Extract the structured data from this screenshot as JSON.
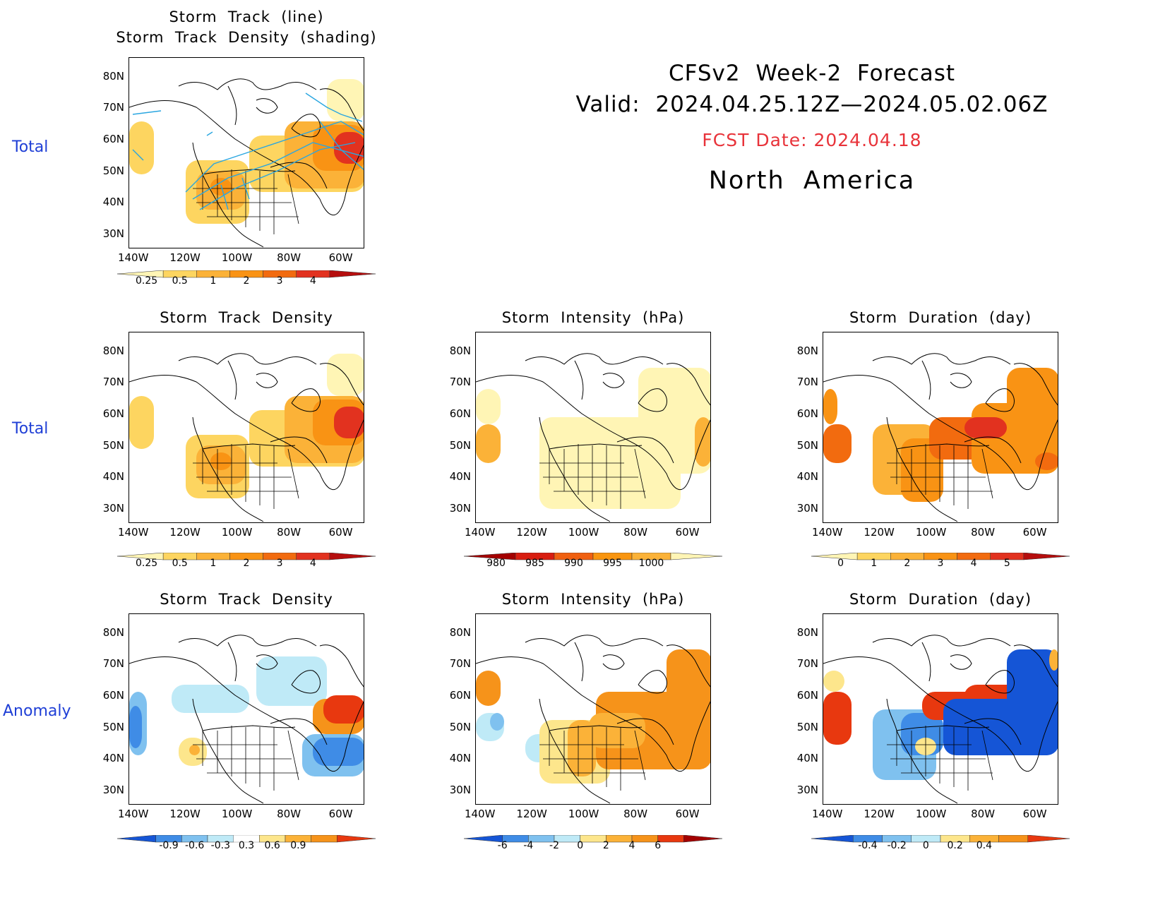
{
  "header": {
    "title_line1": "CFSv2  Week-2  Forecast",
    "title_line2": "Valid:  2024.04.25.12Z—2024.05.02.06Z",
    "fcst_date": "FCST Date: 2024.04.18",
    "region": "North  America"
  },
  "row_labels": [
    "Total",
    "Total",
    "Anomaly"
  ],
  "lat_ticks": [
    "80N",
    "70N",
    "60N",
    "50N",
    "40N",
    "30N"
  ],
  "lon_ticks": [
    "140W",
    "120W",
    "100W",
    "80W",
    "60W"
  ],
  "panels": [
    {
      "id": "track-total",
      "title": "Storm  Track  (line)\nStorm  Track  Density  (shading)"
    },
    {
      "id": "density-total",
      "title": "Storm  Track  Density"
    },
    {
      "id": "intensity-total",
      "title": "Storm  Intensity  (hPa)"
    },
    {
      "id": "duration-total",
      "title": "Storm  Duration  (day)"
    },
    {
      "id": "density-anom",
      "title": "Storm  Track  Density"
    },
    {
      "id": "intensity-anom",
      "title": "Storm  Intensity  (hPa)"
    },
    {
      "id": "duration-anom",
      "title": "Storm  Duration  (day)"
    }
  ],
  "colorbars": {
    "density_total": {
      "labels": [
        "0.25",
        "0.5",
        "1",
        "2",
        "3",
        "4"
      ],
      "colors": [
        "#fff5b5",
        "#fdd560",
        "#fbb238",
        "#f99314",
        "#f26b0f",
        "#e2321f",
        "#b50e0e"
      ]
    },
    "intensity_total": {
      "labels": [
        "980",
        "985",
        "990",
        "995",
        "1000"
      ],
      "colors": [
        "#a30000",
        "#d81d10",
        "#f06010",
        "#f9950f",
        "#fbb238",
        "#fff5b5"
      ]
    },
    "duration_total": {
      "labels": [
        "0",
        "1",
        "2",
        "3",
        "4",
        "5"
      ],
      "colors": [
        "#fff5b5",
        "#fdd560",
        "#fbb238",
        "#f99314",
        "#f26b0f",
        "#e2321f",
        "#b50e0e"
      ]
    },
    "density_anom": {
      "labels": [
        "-0.9",
        "-0.6",
        "-0.3",
        "0.3",
        "0.6",
        "0.9"
      ],
      "colors": [
        "#1555d6",
        "#3f8ce6",
        "#7fc1ef",
        "#bfeaf7",
        "#ffffff",
        "#fde68c",
        "#fbb238",
        "#f6931a",
        "#e8380f"
      ]
    },
    "intensity_anom": {
      "labels": [
        "-6",
        "-4",
        "-2",
        "0",
        "2",
        "4",
        "6"
      ],
      "colors": [
        "#1555d6",
        "#3f8ce6",
        "#7fc1ef",
        "#bfeaf7",
        "#fde68c",
        "#fbb238",
        "#f6931a",
        "#e8380f",
        "#a30000"
      ]
    },
    "duration_anom": {
      "labels": [
        "-0.4",
        "-0.2",
        "0",
        "0.2",
        "0.4"
      ],
      "colors": [
        "#1555d6",
        "#3f8ce6",
        "#7fc1ef",
        "#bfeaf7",
        "#fde68c",
        "#fbb238",
        "#f6931a",
        "#e8380f"
      ]
    }
  }
}
